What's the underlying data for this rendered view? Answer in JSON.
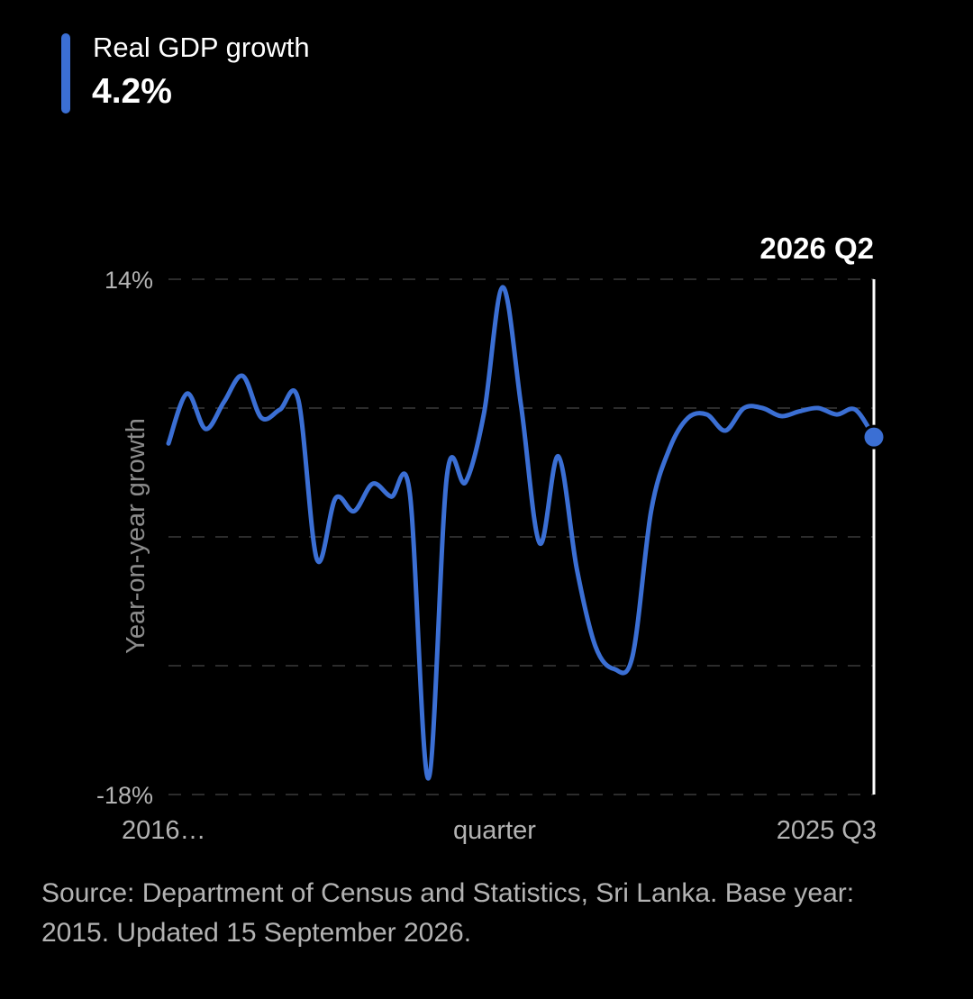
{
  "legend": {
    "label": "Real GDP growth",
    "value": "4.2%",
    "color": "#3b6fd4"
  },
  "hover": {
    "label": "2026 Q2"
  },
  "source_note": "Source: Department of Census and Statistics, Sri Lanka. Base year: 2015. Updated 15 September 2026.",
  "chart_data": {
    "type": "line",
    "title": "",
    "xlabel": "quarter",
    "ylabel": "Year-on-year growth",
    "x_tick_labels": [
      "2016…",
      "2025 Q3"
    ],
    "y_tick_labels": [
      "14%",
      "-18%"
    ],
    "ylim": [
      -18,
      14
    ],
    "grid": true,
    "grid_y_values": [
      14,
      6,
      -2,
      -10,
      -18
    ],
    "series": [
      {
        "name": "Real GDP growth",
        "color": "#3b6fd4",
        "values": [
          3.8,
          6.9,
          4.7,
          6.4,
          8.0,
          5.4,
          5.9,
          6.5,
          -3.4,
          0.4,
          -0.4,
          1.3,
          0.5,
          0.7,
          -17.0,
          1.8,
          1.4,
          5.7,
          13.5,
          6.1,
          -2.4,
          3.0,
          -4.0,
          -8.8,
          -10.2,
          -9.4,
          -0.4,
          3.5,
          5.4,
          5.6,
          4.6,
          6.0,
          6.0,
          5.5,
          5.8,
          6.0,
          5.6,
          5.9,
          4.2
        ]
      }
    ]
  }
}
